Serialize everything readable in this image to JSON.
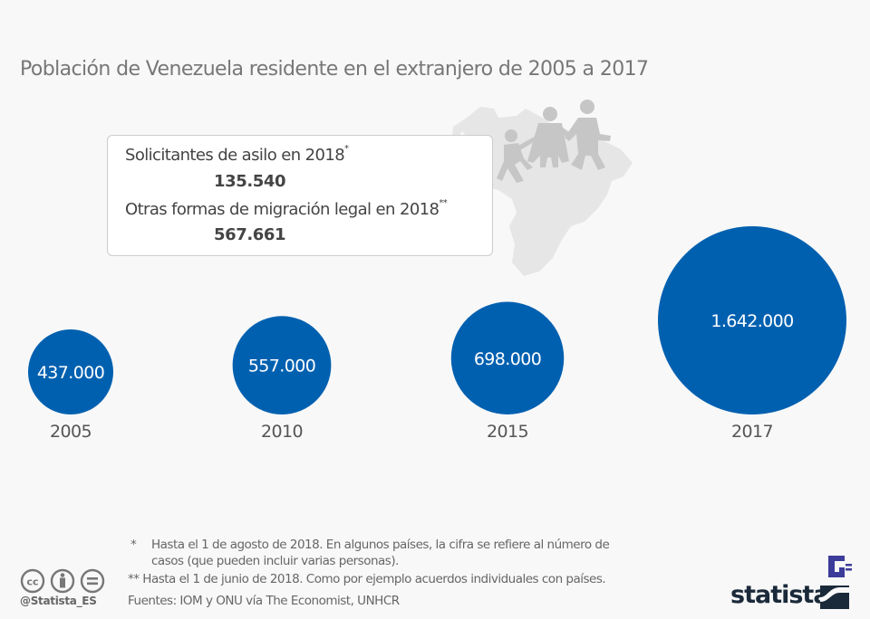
{
  "title": "Población de Venezuela residente en el extranjero de 2005 a 2017",
  "infobox": {
    "items": [
      {
        "label": "Solicitantes de asilo en 2018",
        "mark": "*",
        "value": "135.540"
      },
      {
        "label": "Otras formas de migración legal en 2018",
        "mark": "**",
        "value": "567.661"
      }
    ]
  },
  "illustration": {
    "map": "venezuela-map-icon",
    "people": "family-walking-icon"
  },
  "chart_data": {
    "type": "bubble",
    "title": "Población de Venezuela residente en el extranjero de 2005 a 2017",
    "categories": [
      "2005",
      "2010",
      "2015",
      "2017"
    ],
    "values": [
      437000,
      557000,
      698000,
      1642000
    ],
    "value_labels": [
      "437.000",
      "557.000",
      "698.000",
      "1.642.000"
    ],
    "color": "#0060b0",
    "label_color": "#ffffff"
  },
  "footnotes": {
    "note1_mark": "*",
    "note1_line1": "Hasta el 1 de agosto de 2018. En algunos países, la cifra se refiere al número de",
    "note1_line2": "casos (que pueden incluir varias personas).",
    "note2": "** Hasta el 1 de junio de 2018. Como por ejemplo acuerdos individuales con países.",
    "sources": "Fuentes: IOM y ONU vía The Economist, UNHCR"
  },
  "license": {
    "icons": [
      "cc-icon",
      "attribution-icon",
      "no-derivatives-icon"
    ],
    "handle": "@Statista_ES"
  },
  "brand": {
    "name": "statista",
    "color": "#1b2a3a",
    "accent": "#3c3c9a"
  }
}
